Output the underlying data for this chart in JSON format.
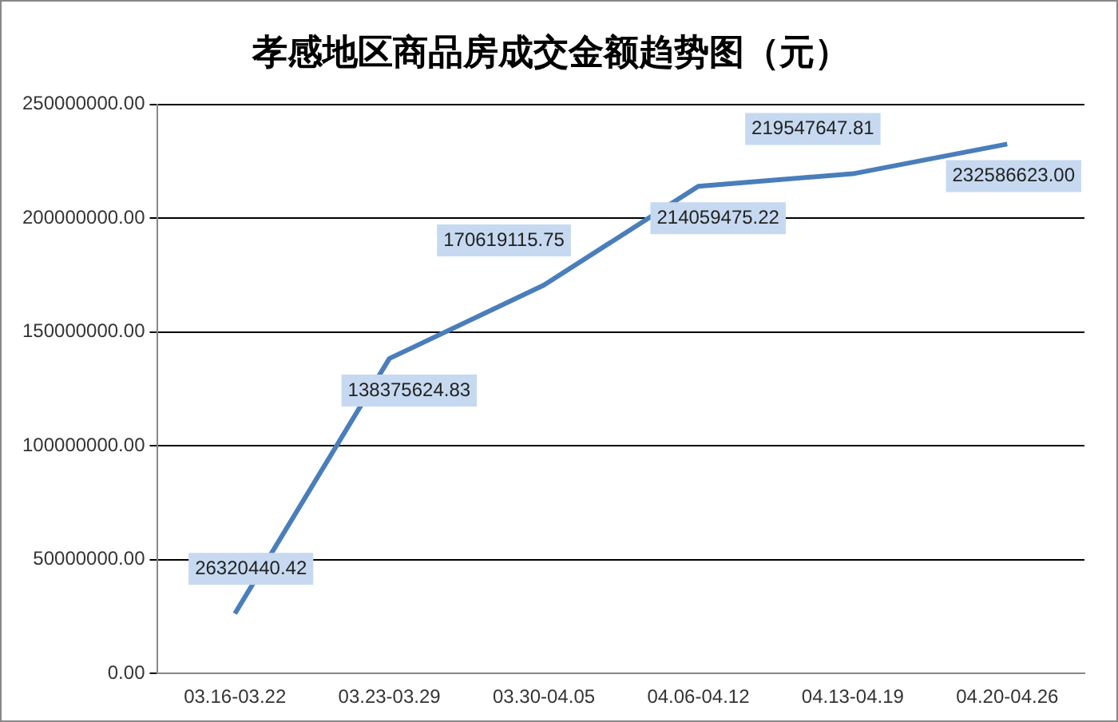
{
  "chart_data": {
    "type": "line",
    "title": "孝感地区商品房成交金额趋势图（元）",
    "categories": [
      "03.16-03.22",
      "03.23-03.29",
      "03.30-04.05",
      "04.06-04.12",
      "04.13-04.19",
      "04.20-04.26"
    ],
    "series": [
      {
        "color": "#4a7ebb",
        "values": [
          26320440.42,
          138375624.83,
          170619115.75,
          214059475.22,
          219547647.81,
          232586623.0
        ],
        "value_labels": [
          "26320440.42",
          "138375624.83",
          "170619115.75",
          "214059475.22",
          "219547647.81",
          "232586623.00"
        ]
      }
    ],
    "ylim": [
      0,
      250000000
    ],
    "yticks": [
      {
        "value": 0,
        "label": "0.00"
      },
      {
        "value": 50000000,
        "label": "50000000.00"
      },
      {
        "value": 100000000,
        "label": "100000000.00"
      },
      {
        "value": 150000000,
        "label": "150000000.00"
      },
      {
        "value": 200000000,
        "label": "200000000.00"
      },
      {
        "value": 250000000,
        "label": "250000000.00"
      }
    ],
    "grid": "y",
    "legend": false,
    "marker": "none",
    "line_style": "solid"
  }
}
